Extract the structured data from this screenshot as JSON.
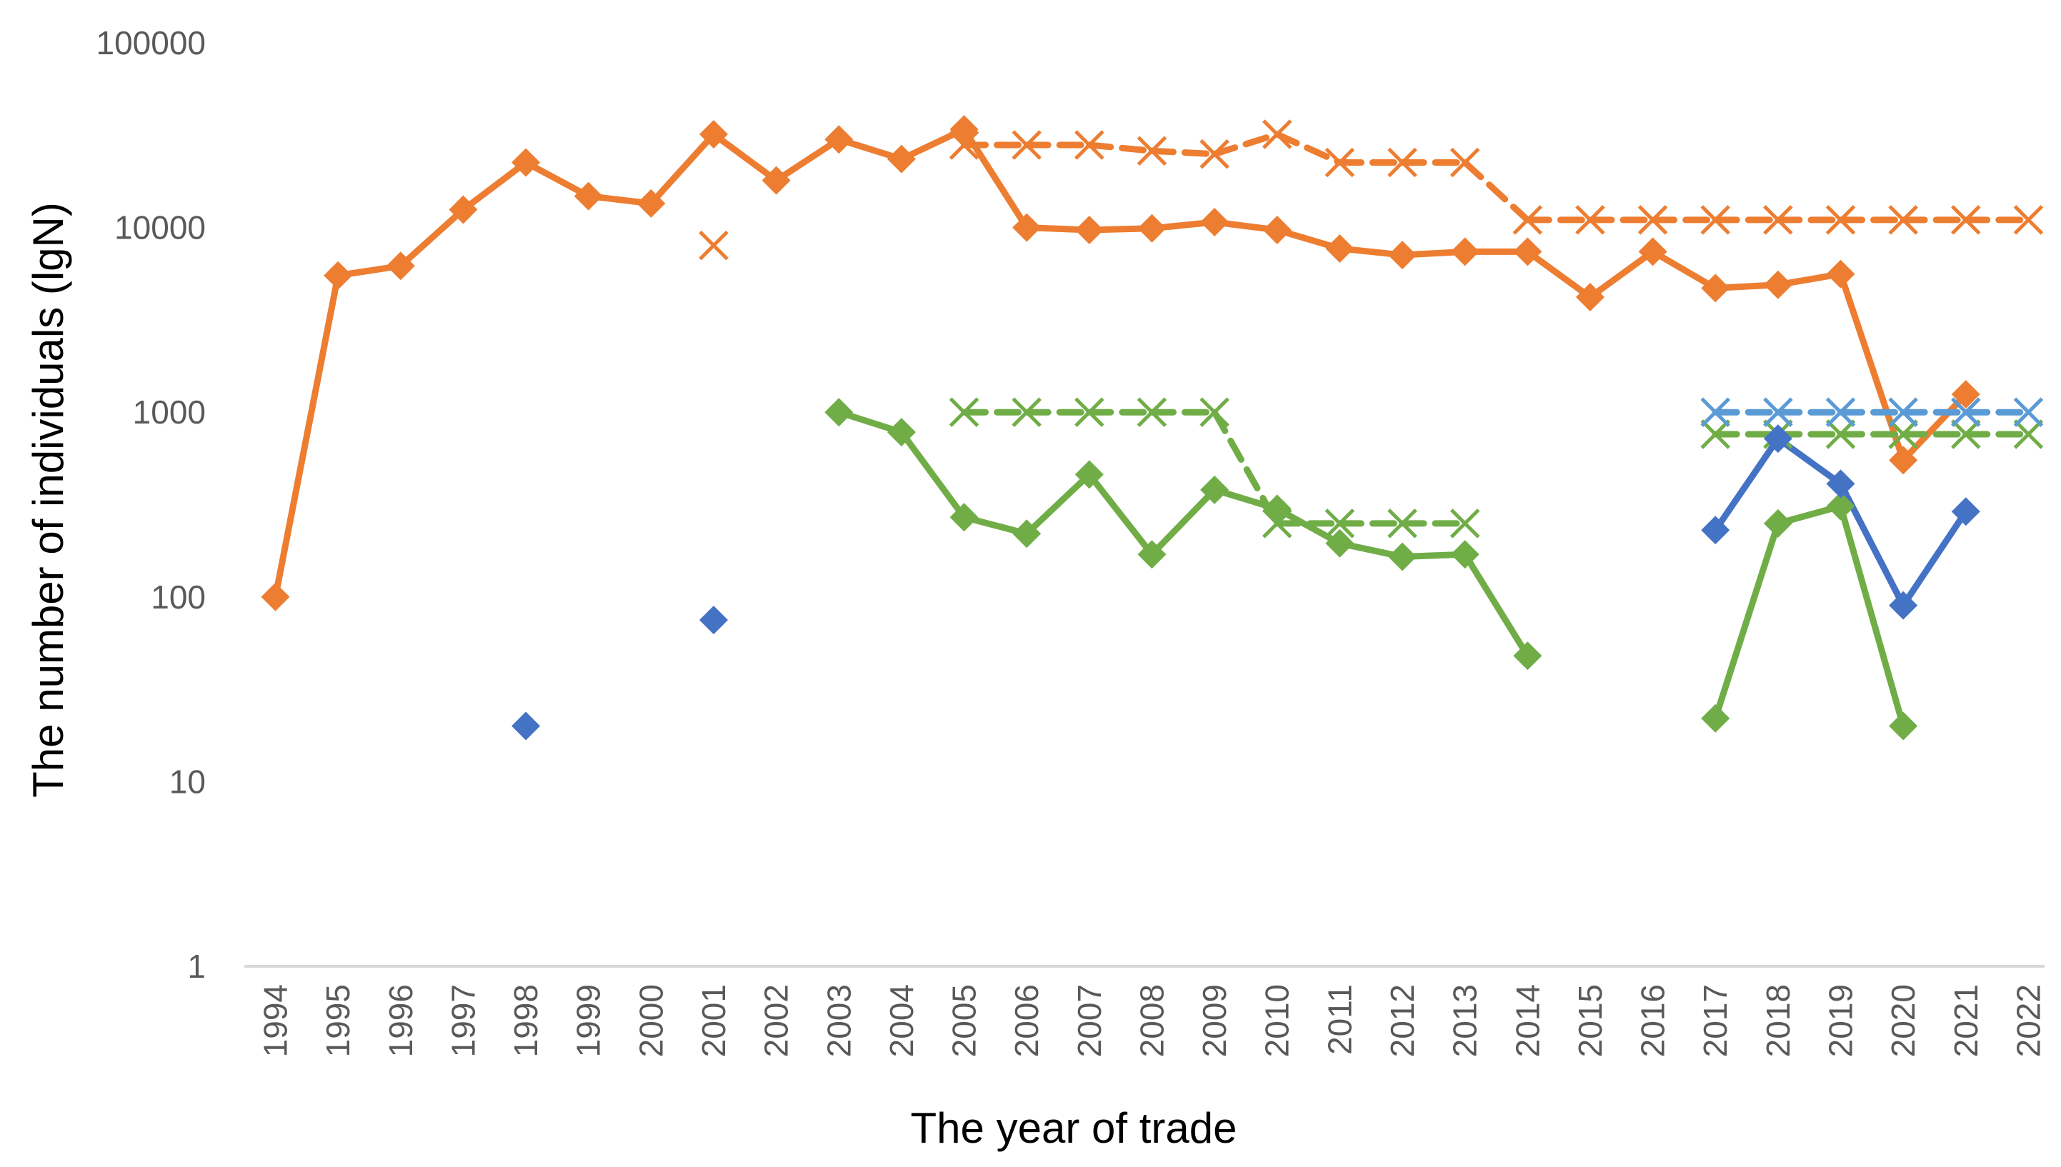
{
  "chart_data": {
    "type": "line",
    "title": "",
    "xlabel": "The year of trade",
    "ylabel": "The number of individuals (lgN)",
    "yscale": "log10",
    "ylim": [
      1,
      100000
    ],
    "yticks": [
      1,
      10,
      100,
      1000,
      10000,
      100000
    ],
    "ytick_labels": [
      "1",
      "10",
      "100",
      "1000",
      "10000",
      "100000"
    ],
    "categories": [
      "1994",
      "1995",
      "1996",
      "1997",
      "1998",
      "1999",
      "2000",
      "2001",
      "2002",
      "2003",
      "2004",
      "2005",
      "2006",
      "2007",
      "2008",
      "2009",
      "2010",
      "2011",
      "2012",
      "2013",
      "2014",
      "2015",
      "2016",
      "2017",
      "2018",
      "2019",
      "2020",
      "2021",
      "2022"
    ],
    "grid": false,
    "legend": "none",
    "colors": {
      "orange": "#ED7D31",
      "green": "#70AD47",
      "blue": "#4472C4",
      "light_blue": "#5B9BD5",
      "axis": "#D9D9D9"
    },
    "series": [
      {
        "name": "orange-solid",
        "color": "#ED7D31",
        "style": "solid",
        "marker": "diamond",
        "values": [
          100,
          5500,
          6200,
          12500,
          22500,
          14800,
          13500,
          32000,
          18000,
          30000,
          23500,
          34000,
          10000,
          9700,
          9900,
          10700,
          9700,
          7700,
          7100,
          7400,
          7400,
          4200,
          7400,
          4700,
          4900,
          5600,
          550,
          1250,
          null
        ]
      },
      {
        "name": "orange-dashed",
        "color": "#ED7D31",
        "style": "dashed",
        "marker": "x",
        "values": [
          null,
          null,
          null,
          null,
          null,
          null,
          null,
          8000,
          null,
          null,
          null,
          28000,
          28000,
          28000,
          26000,
          25000,
          32000,
          22500,
          22500,
          22500,
          11000,
          11000,
          11000,
          11000,
          11000,
          11000,
          11000,
          11000,
          11000
        ]
      },
      {
        "name": "green-solid",
        "color": "#70AD47",
        "style": "solid",
        "marker": "diamond",
        "values": [
          null,
          null,
          null,
          null,
          null,
          null,
          null,
          null,
          null,
          1000,
          780,
          270,
          220,
          460,
          170,
          380,
          300,
          195,
          165,
          170,
          48,
          null,
          null,
          22,
          250,
          310,
          20,
          null,
          null
        ]
      },
      {
        "name": "green-dashed",
        "color": "#70AD47",
        "style": "dashed",
        "marker": "x",
        "values": [
          null,
          null,
          null,
          null,
          null,
          null,
          null,
          null,
          null,
          null,
          null,
          1000,
          1000,
          1000,
          1000,
          1000,
          250,
          250,
          250,
          250,
          null,
          null,
          null,
          760,
          760,
          760,
          760,
          760,
          760
        ]
      },
      {
        "name": "blue-solid",
        "color": "#4472C4",
        "style": "solid",
        "marker": "diamond",
        "values": [
          null,
          null,
          null,
          null,
          20,
          null,
          null,
          75,
          null,
          null,
          null,
          null,
          null,
          null,
          null,
          null,
          null,
          null,
          null,
          null,
          null,
          null,
          null,
          230,
          720,
          410,
          90,
          290,
          null
        ]
      },
      {
        "name": "lightblue-dashed",
        "color": "#5B9BD5",
        "style": "dashed",
        "marker": "x",
        "values": [
          null,
          null,
          null,
          null,
          null,
          null,
          null,
          null,
          null,
          null,
          null,
          null,
          null,
          null,
          null,
          null,
          null,
          null,
          null,
          null,
          null,
          null,
          null,
          1000,
          1000,
          1000,
          1000,
          1000,
          1000
        ]
      }
    ]
  }
}
